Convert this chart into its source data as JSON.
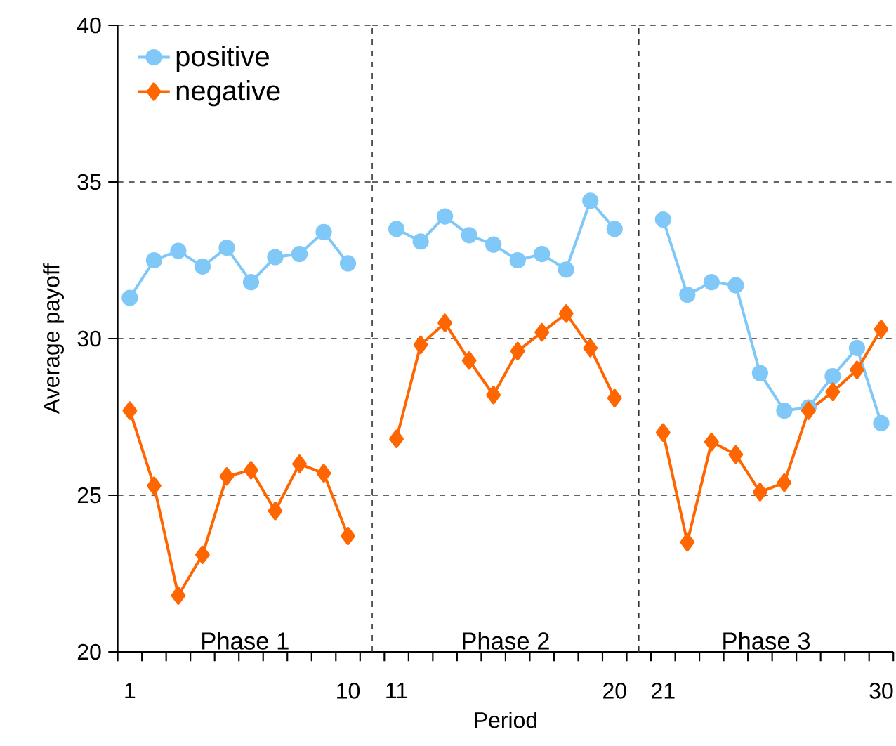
{
  "chart_data": [
    {
      "type": "line",
      "ylabel": "Average payoff",
      "categories": [
        "1",
        null,
        null,
        null,
        null,
        null,
        null,
        null,
        null,
        "10"
      ],
      "series": [
        {
          "name": "positive",
          "color": "#80c8f8",
          "marker": "circle",
          "values": [
            31.3,
            32.5,
            32.8,
            32.3,
            32.9,
            31.8,
            32.6,
            32.7,
            33.4,
            32.4
          ]
        },
        {
          "name": "negative",
          "color": "#ff6600",
          "marker": "diamond",
          "values": [
            27.7,
            25.3,
            21.8,
            23.1,
            25.6,
            25.8,
            24.5,
            26.0,
            25.7,
            23.7
          ]
        }
      ],
      "ylim": [
        20,
        40
      ],
      "yticks": [
        20,
        25,
        30,
        35,
        40
      ],
      "grid": "y",
      "legend": "top left",
      "line_style": "solid",
      "annotations": [
        "Phase 1"
      ]
    },
    {
      "type": "line",
      "xlabel": "Period",
      "categories": [
        "11",
        null,
        null,
        null,
        null,
        null,
        null,
        null,
        null,
        "20"
      ],
      "series": [
        {
          "color": "#80c8f8",
          "marker": "circle",
          "values": [
            33.5,
            33.1,
            33.9,
            33.3,
            33.0,
            32.5,
            32.7,
            32.2,
            34.4,
            33.5
          ]
        },
        {
          "color": "#ff6600",
          "marker": "diamond",
          "values": [
            26.8,
            29.8,
            30.5,
            29.3,
            28.2,
            29.6,
            30.2,
            30.8,
            29.7,
            28.1
          ]
        }
      ],
      "ylim": [
        20,
        40
      ],
      "yticks": [
        20,
        25,
        30,
        35,
        40
      ],
      "grid": "y",
      "tick_labels": "x",
      "line_style": "solid",
      "annotations": [
        "Phase 2"
      ]
    },
    {
      "type": "line",
      "categories": [
        "21",
        null,
        null,
        null,
        null,
        null,
        null,
        null,
        null,
        "30"
      ],
      "series": [
        {
          "color": "#80c8f8",
          "marker": "circle",
          "values": [
            33.8,
            31.4,
            31.8,
            31.7,
            28.9,
            27.7,
            27.8,
            28.8,
            29.7,
            27.3
          ]
        },
        {
          "color": "#ff6600",
          "marker": "diamond",
          "values": [
            27.0,
            23.5,
            26.7,
            26.3,
            25.1,
            25.4,
            27.7,
            28.3,
            29.0,
            30.3
          ]
        }
      ],
      "ylim": [
        20,
        40
      ],
      "yticks": [
        20,
        25,
        30,
        35,
        40
      ],
      "grid": "y",
      "tick_labels": "x",
      "line_style": "solid",
      "annotations": [
        "Phase 3"
      ]
    }
  ]
}
